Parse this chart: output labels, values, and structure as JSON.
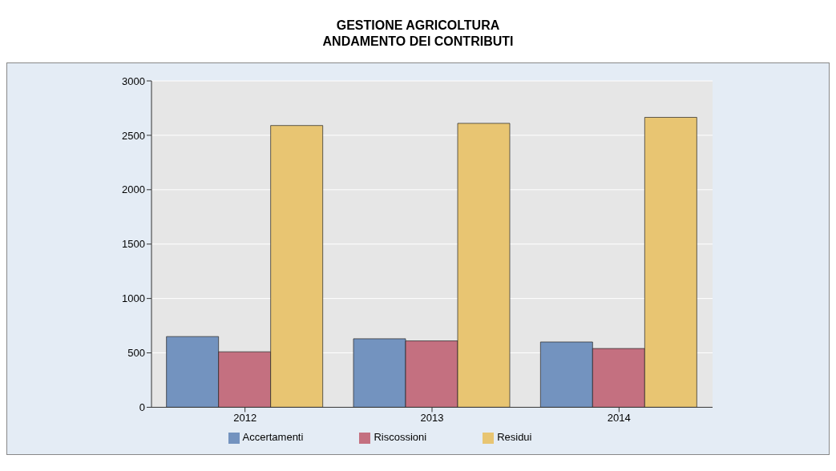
{
  "chart_data": {
    "type": "bar",
    "title": "GESTIONE AGRICOLTURA\nANDAMENTO DEI CONTRIBUTI",
    "categories": [
      "2012",
      "2013",
      "2014"
    ],
    "series": [
      {
        "name": "Accertamenti",
        "color": "#7393bf",
        "values": [
          650,
          630,
          600
        ]
      },
      {
        "name": "Riscossioni",
        "color": "#c47080",
        "values": [
          510,
          610,
          540
        ]
      },
      {
        "name": "Residui",
        "color": "#e8c572",
        "values": [
          2590,
          2610,
          2665
        ]
      }
    ],
    "ylim": [
      0,
      3000
    ],
    "yticks": [
      0,
      500,
      1000,
      1500,
      2000,
      2500,
      3000
    ],
    "grid": "y",
    "legend": "bottom"
  }
}
